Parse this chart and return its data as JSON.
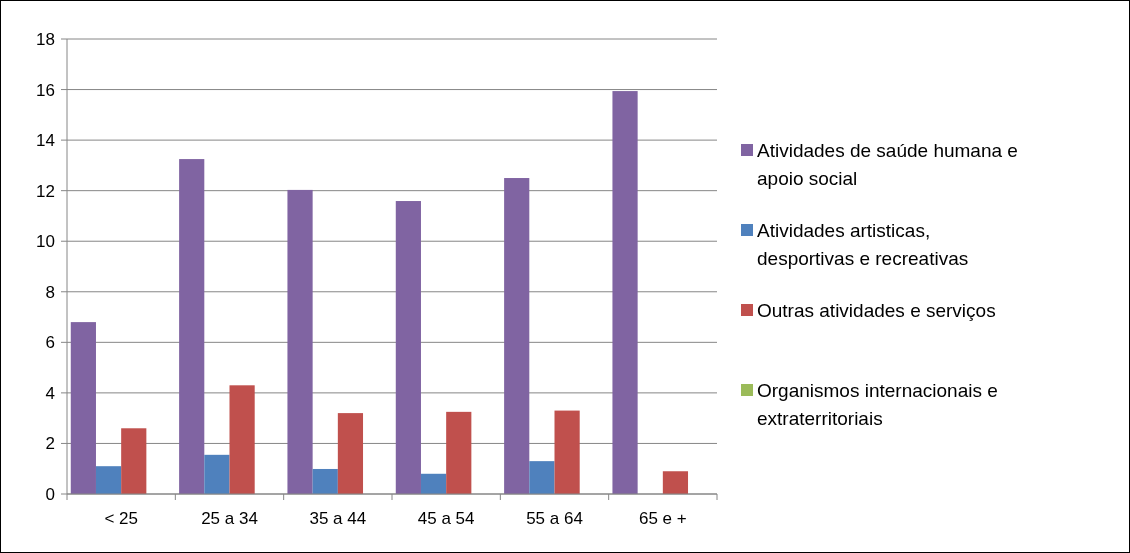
{
  "chart_data": {
    "type": "bar",
    "categories": [
      "< 25",
      "25 a 34",
      "35 a 44",
      "45 a 54",
      "55 a 64",
      "65 e +"
    ],
    "series": [
      {
        "name": "Atividades de saúde humana e apoio social",
        "color": "#8064a2",
        "values": [
          6.8,
          13.25,
          12.03,
          11.59,
          12.5,
          15.94
        ]
      },
      {
        "name": "Atividades artisticas, desportivas e recreativas",
        "color": "#4f81bd",
        "values": [
          1.1,
          1.55,
          0.99,
          0.8,
          1.3,
          0
        ]
      },
      {
        "name": "Outras atividades e serviços",
        "color": "#c0504d",
        "values": [
          2.6,
          4.3,
          3.2,
          3.25,
          3.3,
          0.9
        ]
      },
      {
        "name": "Organismos internacionais e extraterritoriais",
        "color": "#9bbb59",
        "values": [
          0,
          0,
          0,
          0,
          0,
          0
        ]
      }
    ],
    "ylim": [
      0,
      18
    ],
    "yticks": [
      0,
      2,
      4,
      6,
      8,
      10,
      12,
      14,
      16,
      18
    ],
    "grid": "y",
    "legend": "right"
  }
}
